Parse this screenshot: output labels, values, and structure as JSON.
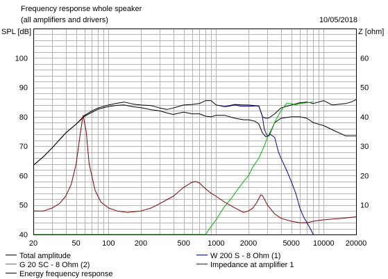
{
  "chart_data": {
    "type": "line",
    "title": "Frequency response whole speaker",
    "subtitle": "(all amplifiers and drivers)",
    "date": "10/05/2018",
    "ylabel": "SPL [dB]",
    "y2label": "Z [ohm]",
    "x_scale": "log",
    "xlim": [
      20,
      20000
    ],
    "ylim": [
      40,
      110
    ],
    "y2lim": [
      0,
      70
    ],
    "grid": true,
    "x_ticks": [
      20,
      50,
      100,
      200,
      500,
      1000,
      2000,
      5000,
      10000,
      20000
    ],
    "x_tick_labels": [
      "20",
      "50",
      "100",
      "200",
      "500",
      "1000",
      "2000",
      "5000",
      "10000",
      "20000"
    ],
    "y_ticks": [
      40,
      50,
      60,
      70,
      80,
      90,
      100
    ],
    "y_tick_labels": [
      "40",
      "50",
      "60",
      "70",
      "80",
      "90",
      "100"
    ],
    "y2_ticks": [
      10,
      20,
      30,
      40,
      50,
      60
    ],
    "y2_tick_labels": [
      "10",
      "20",
      "30",
      "40",
      "50",
      "60"
    ],
    "legend": [
      {
        "label": "Total amplitude",
        "color": "#000000"
      },
      {
        "label": "W 200 S - 8 Ohm (1)",
        "color": "#0000a0"
      },
      {
        "label": "G 20 SC - 8 Ohm (2)",
        "color": "#00b400"
      },
      {
        "label": "Impedance at amplifier 1",
        "color": "#800000"
      },
      {
        "label": "Energy frequency response",
        "color": "#000000"
      }
    ],
    "series": [
      {
        "name": "Total amplitude",
        "color": "#000000",
        "axis": "left",
        "points": [
          [
            20,
            63.5
          ],
          [
            25,
            66.5
          ],
          [
            30,
            69.5
          ],
          [
            40,
            74.5
          ],
          [
            50,
            77.5
          ],
          [
            60,
            80.2
          ],
          [
            70,
            81.5
          ],
          [
            80,
            82.6
          ],
          [
            100,
            83.5
          ],
          [
            120,
            83.9
          ],
          [
            140,
            84
          ],
          [
            170,
            83.4
          ],
          [
            200,
            83.1
          ],
          [
            250,
            82.4
          ],
          [
            300,
            82
          ],
          [
            350,
            81.3
          ],
          [
            400,
            80.8
          ],
          [
            500,
            81.6
          ],
          [
            600,
            81
          ],
          [
            700,
            81
          ],
          [
            800,
            80.2
          ],
          [
            900,
            80
          ],
          [
            1000,
            80.5
          ],
          [
            1200,
            80.5
          ],
          [
            1500,
            79.5
          ],
          [
            1800,
            79
          ],
          [
            2000,
            79
          ],
          [
            2300,
            78.5
          ],
          [
            2500,
            77.5
          ],
          [
            2700,
            74.5
          ],
          [
            2900,
            73.2
          ],
          [
            3100,
            73.5
          ],
          [
            3500,
            78
          ],
          [
            4000,
            79.5
          ],
          [
            5000,
            80
          ],
          [
            6000,
            80
          ],
          [
            7000,
            79.5
          ],
          [
            8000,
            78
          ],
          [
            10000,
            77
          ],
          [
            13000,
            75
          ],
          [
            16000,
            73.5
          ],
          [
            20000,
            73.5
          ]
        ]
      },
      {
        "name": "Energy frequency response",
        "color": "#000000",
        "axis": "left",
        "points": [
          [
            20,
            63.5
          ],
          [
            25,
            66.5
          ],
          [
            30,
            69.5
          ],
          [
            40,
            74.5
          ],
          [
            50,
            77.5
          ],
          [
            60,
            80.5
          ],
          [
            70,
            82
          ],
          [
            80,
            83
          ],
          [
            100,
            84
          ],
          [
            120,
            84.6
          ],
          [
            140,
            85
          ],
          [
            170,
            84.3
          ],
          [
            200,
            84
          ],
          [
            250,
            83.8
          ],
          [
            300,
            83
          ],
          [
            350,
            82.5
          ],
          [
            400,
            83
          ],
          [
            500,
            84
          ],
          [
            600,
            84.2
          ],
          [
            700,
            84.5
          ],
          [
            800,
            85.5
          ],
          [
            900,
            85.5
          ],
          [
            1000,
            84
          ],
          [
            1200,
            83.5
          ],
          [
            1500,
            84.2
          ],
          [
            1800,
            84
          ],
          [
            2000,
            84
          ],
          [
            2300,
            83.8
          ],
          [
            2500,
            83.6
          ],
          [
            2700,
            80
          ],
          [
            2900,
            79.5
          ],
          [
            3100,
            79.6
          ],
          [
            3500,
            81
          ],
          [
            4000,
            83
          ],
          [
            5000,
            84
          ],
          [
            6000,
            84.8
          ],
          [
            7000,
            85
          ],
          [
            8000,
            84.5
          ],
          [
            10000,
            85.5
          ],
          [
            12000,
            84
          ],
          [
            14000,
            84.3
          ],
          [
            16000,
            84.5
          ],
          [
            18000,
            85
          ],
          [
            20000,
            85.8
          ]
        ]
      },
      {
        "name": "W 200 S - 8 Ohm (1)",
        "color": "#0000a0",
        "axis": "left",
        "points": [
          [
            1100,
            83.8
          ],
          [
            1200,
            83.4
          ],
          [
            1300,
            83.6
          ],
          [
            1500,
            84
          ],
          [
            1700,
            83.6
          ],
          [
            2000,
            83.6
          ],
          [
            2300,
            83.7
          ],
          [
            2500,
            83.7
          ],
          [
            2700,
            80
          ],
          [
            2800,
            76
          ],
          [
            2900,
            74.5
          ],
          [
            3000,
            73.5
          ],
          [
            3200,
            74
          ],
          [
            3500,
            73
          ],
          [
            3800,
            68
          ],
          [
            4000,
            66
          ],
          [
            4500,
            62
          ],
          [
            5000,
            58
          ],
          [
            5500,
            54
          ],
          [
            6000,
            49
          ],
          [
            6500,
            46
          ],
          [
            7000,
            44
          ],
          [
            7500,
            42
          ],
          [
            8000,
            40
          ]
        ]
      },
      {
        "name": "G 20 SC - 8 Ohm (2)",
        "color": "#00b400",
        "axis": "left",
        "points": [
          [
            20,
            40
          ],
          [
            800,
            40
          ],
          [
            850,
            41.5
          ],
          [
            1000,
            45
          ],
          [
            1100,
            47.5
          ],
          [
            1200,
            49.5
          ],
          [
            1400,
            52.5
          ],
          [
            1600,
            55.5
          ],
          [
            1800,
            58
          ],
          [
            2000,
            60
          ],
          [
            2200,
            63
          ],
          [
            2500,
            66
          ],
          [
            2800,
            70
          ],
          [
            3000,
            73
          ],
          [
            3300,
            76
          ],
          [
            3600,
            79
          ],
          [
            4000,
            82
          ],
          [
            4500,
            84.5
          ],
          [
            5000,
            84.5
          ],
          [
            5500,
            84
          ],
          [
            6000,
            84.5
          ],
          [
            7000,
            84.8
          ],
          [
            8000,
            85
          ]
        ]
      },
      {
        "name": "Impedance at amplifier 1",
        "color": "#800000",
        "axis": "right",
        "points": [
          [
            20,
            8
          ],
          [
            25,
            8
          ],
          [
            30,
            9
          ],
          [
            35,
            10.5
          ],
          [
            40,
            13
          ],
          [
            45,
            17
          ],
          [
            50,
            24
          ],
          [
            55,
            35
          ],
          [
            58,
            40.5
          ],
          [
            62,
            35
          ],
          [
            66,
            24
          ],
          [
            75,
            15
          ],
          [
            85,
            11
          ],
          [
            100,
            9
          ],
          [
            120,
            8
          ],
          [
            150,
            7.5
          ],
          [
            200,
            8
          ],
          [
            250,
            9
          ],
          [
            300,
            10.5
          ],
          [
            400,
            13
          ],
          [
            500,
            16
          ],
          [
            600,
            17.8
          ],
          [
            650,
            18
          ],
          [
            700,
            17.5
          ],
          [
            800,
            15.5
          ],
          [
            900,
            14
          ],
          [
            1000,
            13
          ],
          [
            1200,
            11
          ],
          [
            1500,
            9
          ],
          [
            1800,
            7.5
          ],
          [
            2000,
            8
          ],
          [
            2200,
            9
          ],
          [
            2400,
            11
          ],
          [
            2600,
            13.5
          ],
          [
            2700,
            13.2
          ],
          [
            3000,
            10
          ],
          [
            3500,
            7
          ],
          [
            4000,
            5.5
          ],
          [
            5000,
            4.5
          ],
          [
            6000,
            4
          ],
          [
            7000,
            4
          ],
          [
            8000,
            4.5
          ],
          [
            10000,
            5
          ],
          [
            15000,
            5.5
          ],
          [
            20000,
            6
          ]
        ]
      }
    ]
  }
}
